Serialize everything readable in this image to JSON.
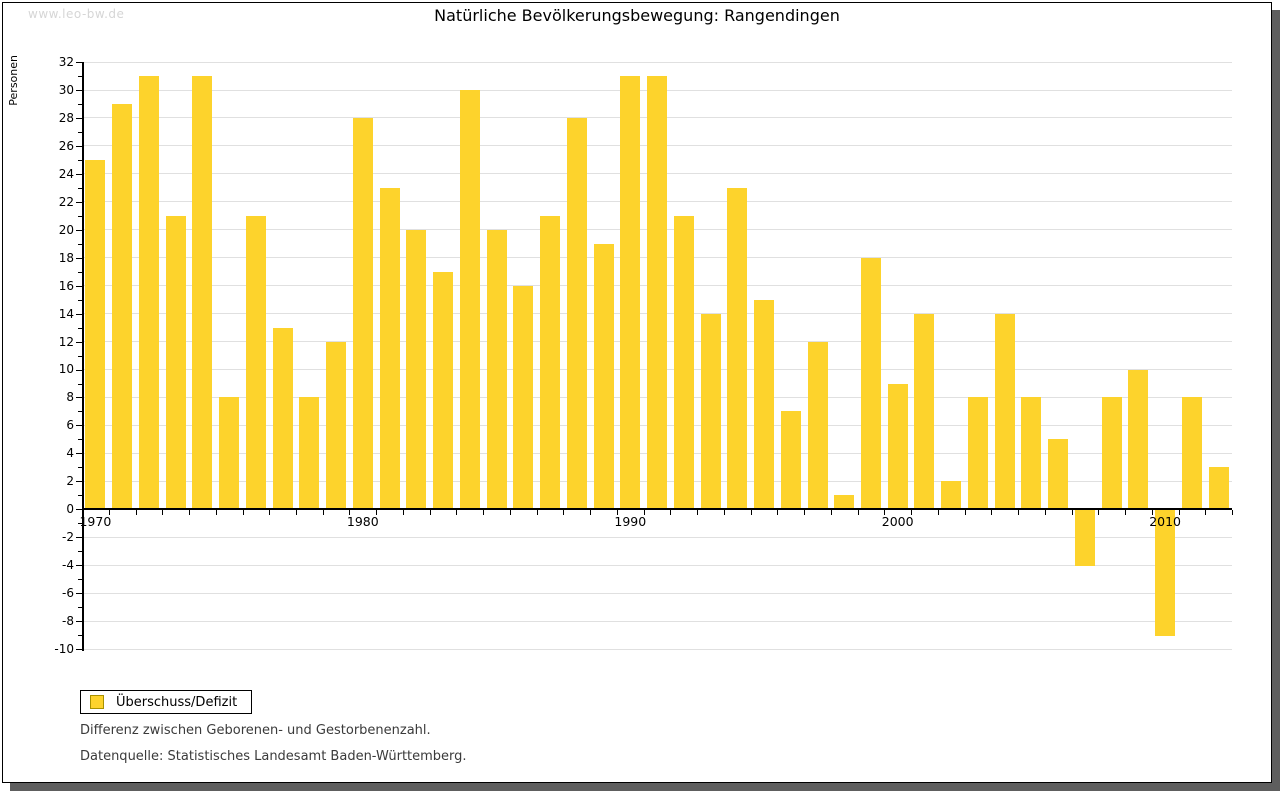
{
  "watermark": "www.leo-bw.de",
  "title": "Natürliche Bevölkerungsbewegung: Rangendingen",
  "legend": {
    "label": "Überschuss/Defizit"
  },
  "footnotes": {
    "line1": "Differenz zwischen Geborenen- und Gestorbenenzahl.",
    "line2": "Datenquelle: Statistisches Landesamt Baden-Württemberg."
  },
  "colors": {
    "bar": "#fdd32c",
    "bar_border": "#a89100",
    "grid": "#e0e0e0",
    "axis": "#000000",
    "watermark": "#d6d6d6",
    "shadow": "#5e5e5e",
    "footnote_text": "#3a3a3a"
  },
  "chart_data": {
    "type": "bar",
    "title": "Natürliche Bevölkerungsbewegung: Rangendingen",
    "xlabel": "",
    "ylabel": "Personen",
    "ylim": [
      -10,
      32
    ],
    "y_tick_step": 2,
    "grid": true,
    "legend_position": "bottom-left",
    "series_name": "Überschuss/Defizit",
    "categories": [
      1970,
      1971,
      1972,
      1973,
      1974,
      1975,
      1976,
      1977,
      1978,
      1979,
      1980,
      1981,
      1982,
      1983,
      1984,
      1985,
      1986,
      1987,
      1988,
      1989,
      1990,
      1991,
      1992,
      1993,
      1994,
      1995,
      1996,
      1997,
      1998,
      1999,
      2000,
      2001,
      2002,
      2003,
      2004,
      2005,
      2006,
      2007,
      2008,
      2009,
      2010,
      2011,
      2012
    ],
    "values": [
      25,
      29,
      31,
      21,
      31,
      8,
      21,
      13,
      8,
      12,
      28,
      23,
      20,
      17,
      30,
      20,
      16,
      21,
      28,
      19,
      31,
      31,
      21,
      14,
      23,
      15,
      7,
      12,
      1,
      18,
      9,
      14,
      2,
      8,
      14,
      8,
      5,
      -4,
      8,
      10,
      -9,
      8,
      3
    ],
    "x_decade_labels": [
      "1970",
      "1980",
      "1990",
      "2000",
      "2010"
    ],
    "y_ticks": [
      32,
      30,
      28,
      26,
      24,
      22,
      20,
      18,
      16,
      14,
      12,
      10,
      8,
      6,
      4,
      2,
      0,
      -2,
      -4,
      -6,
      -8,
      -10
    ]
  }
}
